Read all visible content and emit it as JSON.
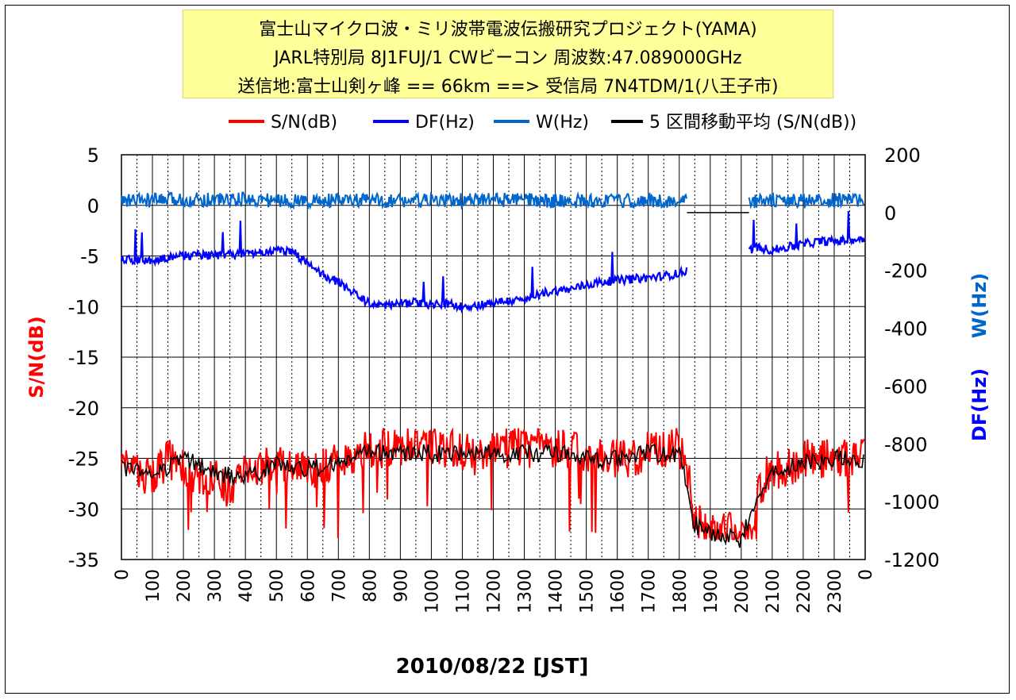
{
  "title_lines": [
    "富士山マイクロ波・ミリ波帯電波伝搬研究プロジェクト(YAMA)",
    "JARL特別局 8J1FUJ/1 CWビーコン 周波数:47.089000GHz",
    "送信地:富士山剣ヶ峰  == 66km ==> 受信局 7N4TDM/1(八王子市)"
  ],
  "chart_data": {
    "type": "line",
    "xlabel": "2010/08/22    [JST]",
    "y_left_label": "S/N(dB)",
    "y_right_labels": [
      "DF(Hz)",
      "W(Hz)"
    ],
    "x_ticks": [
      "0",
      "100",
      "200",
      "300",
      "400",
      "500",
      "600",
      "700",
      "800",
      "900",
      "1000",
      "1100",
      "1200",
      "1300",
      "1400",
      "1500",
      "1600",
      "1700",
      "1800",
      "1900",
      "2000",
      "2100",
      "2200",
      "2300",
      "0"
    ],
    "y_left_ticks": [
      "5",
      "0",
      "-5",
      "-10",
      "-15",
      "-20",
      "-25",
      "-30",
      "-35"
    ],
    "y_left_range": [
      -35,
      5
    ],
    "y_right_ticks": [
      "200",
      "0",
      "-200",
      "-400",
      "-600",
      "-800",
      "-1000",
      "-1200"
    ],
    "y_right_range": [
      -1200,
      200
    ],
    "x_range_hours": [
      0,
      24
    ],
    "grid": true,
    "legend_position": "top",
    "series": [
      {
        "name": "S/N(dB)",
        "axis": "left",
        "color": "#ff0000",
        "x": [
          0,
          0.5,
          1,
          1.5,
          2,
          2.5,
          3,
          3.5,
          4,
          4.5,
          5,
          5.5,
          6,
          6.5,
          7,
          7.5,
          8,
          8.5,
          9,
          9.5,
          10,
          10.5,
          11,
          11.5,
          12,
          12.5,
          13,
          13.5,
          14,
          14.5,
          15,
          15.5,
          16,
          16.5,
          17,
          17.5,
          18,
          18.25,
          18.5,
          19,
          19.5,
          20,
          20.25,
          20.5,
          20.75,
          21,
          21.5,
          22,
          22.5,
          23,
          23.5,
          24
        ],
        "values": [
          -26,
          -26,
          -27,
          -25,
          -26,
          -27,
          -27,
          -28,
          -26,
          -26,
          -25,
          -26,
          -26,
          -26,
          -25,
          -25,
          -24,
          -24,
          -24,
          -24,
          -24,
          -24,
          -24,
          -25,
          -24,
          -24,
          -24,
          -24,
          -24,
          -24,
          -25,
          -25,
          -25,
          -25,
          -24,
          -24,
          -24,
          -26,
          -31,
          -32,
          -32,
          -33,
          -33,
          -29,
          -27,
          -26,
          -26,
          -25,
          -25,
          -25,
          -25,
          -25
        ]
      },
      {
        "name": "DF(Hz)",
        "axis": "right",
        "color": "#0000ff",
        "x": [
          0,
          0.5,
          1,
          1.5,
          2,
          2.5,
          3,
          3.5,
          4,
          4.5,
          5,
          5.5,
          6,
          6.5,
          7,
          7.5,
          8,
          8.5,
          9,
          9.5,
          10,
          10.5,
          11,
          11.5,
          12,
          12.5,
          13,
          13.5,
          14,
          14.5,
          15,
          15.5,
          16,
          16.5,
          17,
          17.5,
          18,
          18.25,
          20.25,
          20.5,
          21,
          21.5,
          22,
          22.5,
          23,
          23.5,
          24
        ],
        "values": [
          -160,
          -165,
          -170,
          -155,
          -150,
          -145,
          -150,
          -145,
          -145,
          -140,
          -130,
          -130,
          -180,
          -215,
          -240,
          -280,
          -315,
          -320,
          -315,
          -310,
          -320,
          -315,
          -325,
          -320,
          -310,
          -305,
          -305,
          -280,
          -270,
          -265,
          -250,
          -240,
          -235,
          -230,
          -225,
          -220,
          -210,
          -200,
          -130,
          -120,
          -130,
          -120,
          -110,
          -100,
          -100,
          -95,
          -90
        ]
      },
      {
        "name": "W(Hz)",
        "axis": "right",
        "color": "#0066cc",
        "x": [
          0,
          2,
          4,
          6,
          8,
          10,
          12,
          14,
          16,
          18,
          18.25,
          20.25,
          22,
          24
        ],
        "values": [
          40,
          45,
          45,
          40,
          42,
          40,
          45,
          40,
          40,
          40,
          38,
          40,
          40,
          45
        ]
      },
      {
        "name": "5 区間移動平均 (S/N(dB))",
        "axis": "left",
        "color": "#000000",
        "x": [
          0,
          1,
          2,
          3,
          4,
          5,
          6,
          7,
          8,
          9,
          10,
          11,
          12,
          13,
          14,
          15,
          16,
          17,
          18,
          18.5,
          19,
          20,
          20.5,
          21,
          22,
          23,
          24
        ],
        "values": [
          -26,
          -26.5,
          -25,
          -26.5,
          -27,
          -25.5,
          -26,
          -25.5,
          -24.5,
          -24.5,
          -24.5,
          -24.5,
          -24.5,
          -24.5,
          -24.5,
          -25,
          -25,
          -24.5,
          -24.5,
          -31.5,
          -32.5,
          -33,
          -29,
          -26.5,
          -25.5,
          -25,
          -25
        ]
      }
    ]
  }
}
